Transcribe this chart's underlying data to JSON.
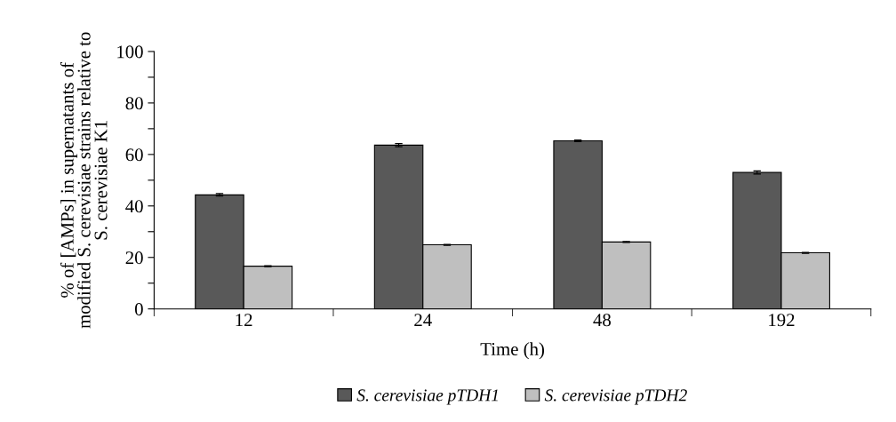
{
  "chart_data": {
    "type": "bar",
    "xlabel": "Time (h)",
    "ylabel": "% of [AMPs] in supernatants of\nmodified S. cerevisiae strains relative to\nS. cerevisiae K1",
    "categories": [
      "12",
      "24",
      "48",
      "192"
    ],
    "series": [
      {
        "name": "S. cerevisiae pTDH1",
        "color": "#595959",
        "values": [
          44.3,
          63.6,
          65.3,
          53.0
        ],
        "errors": [
          0.5,
          0.6,
          0.3,
          0.6
        ]
      },
      {
        "name": "S. cerevisiae pTDH2",
        "color": "#bfbfbf",
        "values": [
          16.6,
          24.9,
          26.0,
          21.8
        ],
        "errors": [
          0.2,
          0.2,
          0.2,
          0.2
        ]
      }
    ],
    "ylim": [
      0,
      100
    ],
    "yticks": [
      0,
      {
        "value": 10,
        "label": null
      },
      20,
      {
        "value": 30,
        "label": null
      },
      40,
      {
        "value": 50,
        "label": null
      },
      60,
      {
        "value": 70,
        "label": null
      },
      80,
      {
        "value": 90,
        "label": null
      },
      100
    ],
    "legend": "bottom",
    "grid": false
  }
}
